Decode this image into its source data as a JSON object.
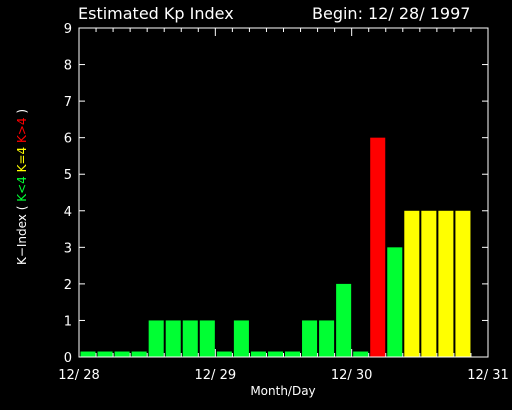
{
  "header": {
    "title": "Estimated Kp Index",
    "begin": "Begin: 12/ 28/ 1997"
  },
  "colors": {
    "quiet": "#00ff33",
    "moderate": "#ffff00",
    "storm": "#ff0000",
    "axis": "#ffffff",
    "background": "#000000"
  },
  "chart_data": {
    "type": "bar",
    "title": "Estimated Kp Index",
    "xlabel": "Month/Day",
    "ylabel_parts": [
      {
        "text": "K−Index ( ",
        "color": "#ffffff"
      },
      {
        "text": "K<4",
        "color": "#00ff33"
      },
      {
        "text": " K=4 ",
        "color": "#ffff00"
      },
      {
        "text": "K>4",
        "color": "#ff0000"
      },
      {
        "text": " )",
        "color": "#ffffff"
      }
    ],
    "ylim": [
      0,
      9
    ],
    "yticks": [
      "0",
      "1",
      "2",
      "3",
      "4",
      "5",
      "6",
      "7",
      "8",
      "9"
    ],
    "xticks": [
      "12/ 28",
      "12/ 29",
      "12/ 30",
      "12/ 31"
    ],
    "interval_hours": 3,
    "values": [
      0.15,
      0.15,
      0.15,
      0.15,
      1,
      1,
      1,
      1,
      0.15,
      1,
      0.15,
      0.15,
      0.15,
      1,
      1,
      2,
      0.15,
      6,
      3,
      4,
      4,
      4,
      4
    ]
  }
}
